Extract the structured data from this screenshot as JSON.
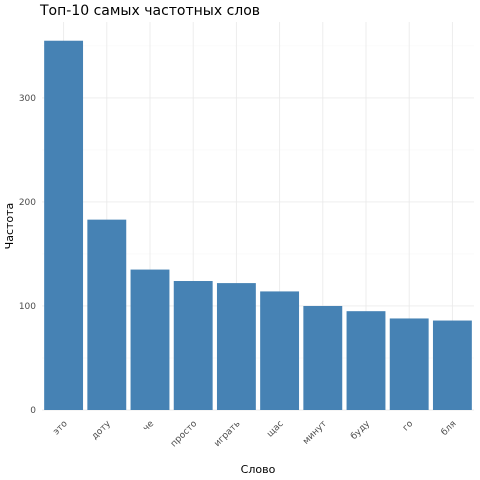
{
  "chart_data": {
    "type": "bar",
    "title": "Топ-10 самых частотных слов",
    "xlabel": "Слово",
    "ylabel": "Частота",
    "categories": [
      "это",
      "доту",
      "че",
      "просто",
      "играть",
      "щас",
      "минут",
      "буду",
      "го",
      "бля"
    ],
    "values": [
      355,
      183,
      135,
      124,
      122,
      114,
      100,
      95,
      88,
      86
    ],
    "ylim": [
      0,
      373
    ],
    "yticks": [
      0,
      100,
      200,
      300
    ],
    "bar_color": "#4682B4",
    "grid": true,
    "legend": "none"
  }
}
